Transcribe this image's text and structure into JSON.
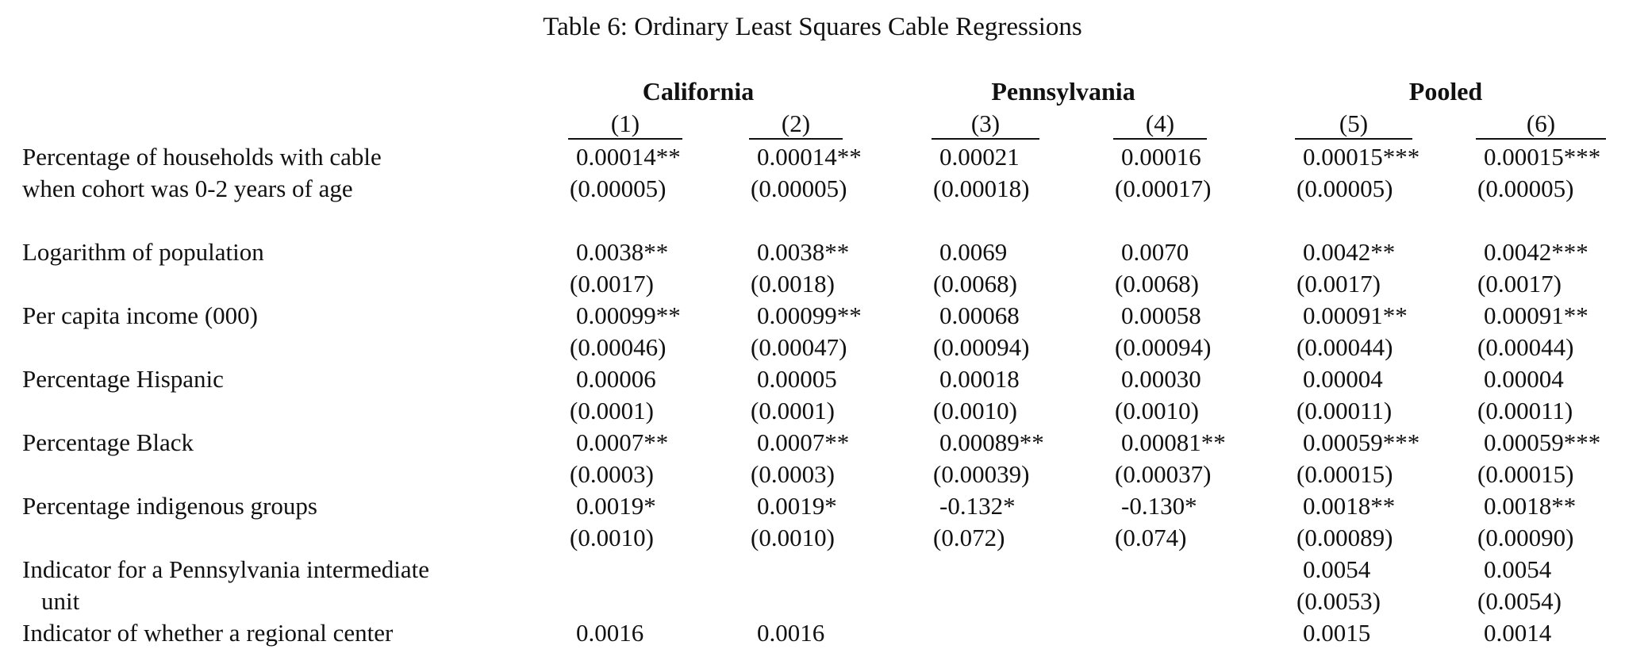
{
  "title": "Table 6: Ordinary Least Squares Cable Regressions",
  "groups": [
    "California",
    "Pennsylvania",
    "Pooled"
  ],
  "columns": [
    "(1)",
    "(2)",
    "(3)",
    "(4)",
    "(5)",
    "(6)"
  ],
  "rows": [
    {
      "label": [
        "Percentage of households with cable",
        "when cohort was 0-2 years of age"
      ],
      "coef": [
        "0.00014**",
        "0.00014**",
        "0.00021",
        "0.00016",
        "0.00015***",
        "0.00015***"
      ],
      "se": [
        "(0.00005)",
        "(0.00005)",
        "(0.00018)",
        "(0.00017)",
        "(0.00005)",
        "(0.00005)"
      ]
    },
    {
      "label": [
        "Logarithm of population"
      ],
      "coef": [
        "0.0038**",
        "0.0038**",
        "0.0069",
        "0.0070",
        "0.0042**",
        "0.0042***"
      ],
      "se": [
        "(0.0017)",
        "(0.0018)",
        "(0.0068)",
        "(0.0068)",
        "(0.0017)",
        "(0.0017)"
      ]
    },
    {
      "label": [
        "Per capita income (000)"
      ],
      "coef": [
        "0.00099**",
        "0.00099**",
        "0.00068",
        "0.00058",
        "0.00091**",
        "0.00091**"
      ],
      "se": [
        "(0.00046)",
        "(0.00047)",
        "(0.00094)",
        "(0.00094)",
        "(0.00044)",
        "(0.00044)"
      ]
    },
    {
      "label": [
        "Percentage Hispanic"
      ],
      "coef": [
        "0.00006",
        "0.00005",
        "0.00018",
        "0.00030",
        "0.00004",
        "0.00004"
      ],
      "se": [
        "(0.0001)",
        "(0.0001)",
        "(0.0010)",
        "(0.0010)",
        "(0.00011)",
        "(0.00011)"
      ]
    },
    {
      "label": [
        "Percentage Black"
      ],
      "coef": [
        "0.0007**",
        "0.0007**",
        "0.00089**",
        "0.00081**",
        "0.00059***",
        "0.00059***"
      ],
      "se": [
        "(0.0003)",
        "(0.0003)",
        "(0.00039)",
        "(0.00037)",
        "(0.00015)",
        "(0.00015)"
      ]
    },
    {
      "label": [
        "Percentage indigenous groups"
      ],
      "coef": [
        "0.0019*",
        "0.0019*",
        "-0.132*",
        "-0.130*",
        "0.0018**",
        "0.0018**"
      ],
      "se": [
        "(0.0010)",
        "(0.0010)",
        "(0.072)",
        "(0.074)",
        "(0.00089)",
        "(0.00090)"
      ]
    },
    {
      "label": [
        "Indicator for a Pennsylvania intermediate",
        "unit"
      ],
      "coef": [
        "",
        "",
        "",
        "",
        "0.0054",
        "0.0054"
      ],
      "se": [
        "",
        "",
        "",
        "",
        "(0.0053)",
        "(0.0054)"
      ]
    },
    {
      "label": [
        "Indicator of whether a regional center"
      ],
      "coef": [
        "0.0016",
        "0.0016",
        "",
        "",
        "0.0015",
        "0.0014"
      ],
      "se": [
        "",
        "",
        "",
        "",
        "",
        ""
      ]
    }
  ]
}
